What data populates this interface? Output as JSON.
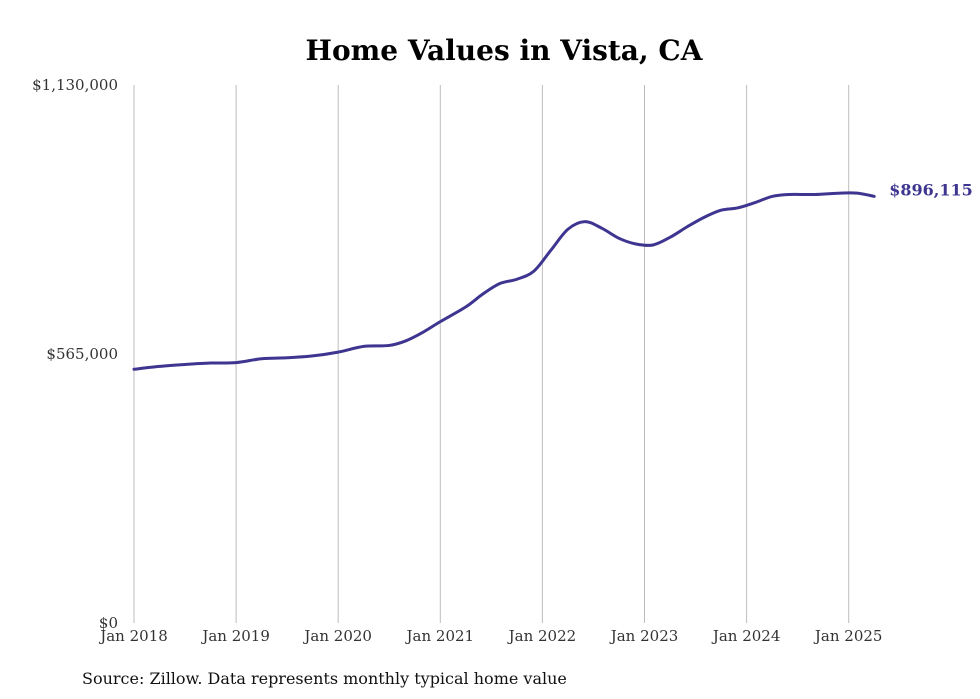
{
  "chart_data": {
    "type": "line",
    "title": "Home Values in Vista, CA",
    "source": "Source: Zillow. Data represents monthly typical home value",
    "ylim": [
      0,
      1130000
    ],
    "ytick_labels": [
      "$0",
      "$565,000",
      "$1,130,000"
    ],
    "ytick_values": [
      0,
      565000,
      1130000
    ],
    "xtick_labels": [
      "Jan 2018",
      "Jan 2019",
      "Jan 2020",
      "Jan 2021",
      "Jan 2022",
      "Jan 2023",
      "Jan 2024",
      "Jan 2025"
    ],
    "xtick_dates": [
      "2018-01",
      "2019-01",
      "2020-01",
      "2021-01",
      "2022-01",
      "2023-01",
      "2024-01",
      "2025-01"
    ],
    "grid": "vertical",
    "line_color": "#3d3590",
    "end_label": "$896,115",
    "series": [
      {
        "points": [
          [
            "2018-01",
            533000
          ],
          [
            "2018-04",
            539000
          ],
          [
            "2018-07",
            543000
          ],
          [
            "2018-10",
            546000
          ],
          [
            "2019-01",
            547000
          ],
          [
            "2019-04",
            555000
          ],
          [
            "2019-07",
            557000
          ],
          [
            "2019-10",
            561000
          ],
          [
            "2020-01",
            569000
          ],
          [
            "2020-04",
            581000
          ],
          [
            "2020-07",
            583000
          ],
          [
            "2020-09",
            593000
          ],
          [
            "2020-11",
            611000
          ],
          [
            "2021-01",
            633000
          ],
          [
            "2021-04",
            664000
          ],
          [
            "2021-06",
            691000
          ],
          [
            "2021-08",
            713000
          ],
          [
            "2021-10",
            722000
          ],
          [
            "2021-12",
            739000
          ],
          [
            "2022-02",
            783000
          ],
          [
            "2022-04",
            827000
          ],
          [
            "2022-06",
            843000
          ],
          [
            "2022-08",
            829000
          ],
          [
            "2022-10",
            808000
          ],
          [
            "2022-12",
            796000
          ],
          [
            "2023-02",
            794000
          ],
          [
            "2023-04",
            810000
          ],
          [
            "2023-06",
            832000
          ],
          [
            "2023-08",
            852000
          ],
          [
            "2023-10",
            867000
          ],
          [
            "2023-12",
            872000
          ],
          [
            "2024-02",
            883000
          ],
          [
            "2024-04",
            896000
          ],
          [
            "2024-06",
            900000
          ],
          [
            "2024-09",
            900000
          ],
          [
            "2024-12",
            903000
          ],
          [
            "2025-02",
            903000
          ],
          [
            "2025-04",
            896115
          ]
        ]
      }
    ]
  }
}
